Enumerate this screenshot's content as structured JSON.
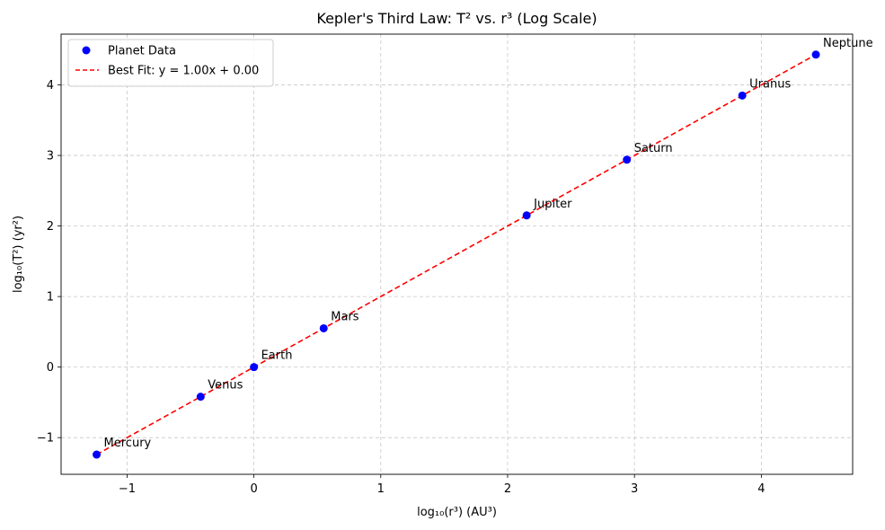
{
  "chart_data": {
    "type": "scatter",
    "title": "Kepler's Third Law: T² vs. r³ (Log Scale)",
    "xlabel": "log₁₀(r³) (AU³)",
    "ylabel": "log₁₀(T²) (yr²)",
    "xlim": [
      -1.52,
      4.72
    ],
    "ylim": [
      -1.52,
      4.72
    ],
    "xticks": [
      -1,
      0,
      1,
      2,
      3,
      4
    ],
    "yticks": [
      -1,
      0,
      1,
      2,
      3,
      4
    ],
    "xtick_labels": [
      "−1",
      "0",
      "1",
      "2",
      "3",
      "4"
    ],
    "ytick_labels": [
      "−1",
      "0",
      "1",
      "2",
      "3",
      "4"
    ],
    "grid": true,
    "legend_position": "top-left",
    "series": [
      {
        "name": "Planet Data",
        "kind": "scatter",
        "color": "#0000ff",
        "points": [
          {
            "label": "Mercury",
            "x": -1.24,
            "y": -1.24
          },
          {
            "label": "Venus",
            "x": -0.42,
            "y": -0.42
          },
          {
            "label": "Earth",
            "x": 0.0,
            "y": 0.0
          },
          {
            "label": "Mars",
            "x": 0.55,
            "y": 0.55
          },
          {
            "label": "Jupiter",
            "x": 2.15,
            "y": 2.15
          },
          {
            "label": "Saturn",
            "x": 2.94,
            "y": 2.94
          },
          {
            "label": "Uranus",
            "x": 3.85,
            "y": 3.85
          },
          {
            "label": "Neptune",
            "x": 4.43,
            "y": 4.43
          }
        ]
      },
      {
        "name": "Best Fit: y = 1.00x + 0.00",
        "kind": "line",
        "style": "dashed",
        "color": "#ff0000",
        "slope": 1.0,
        "intercept": 0.0,
        "x_range": [
          -1.24,
          4.43
        ]
      }
    ]
  }
}
